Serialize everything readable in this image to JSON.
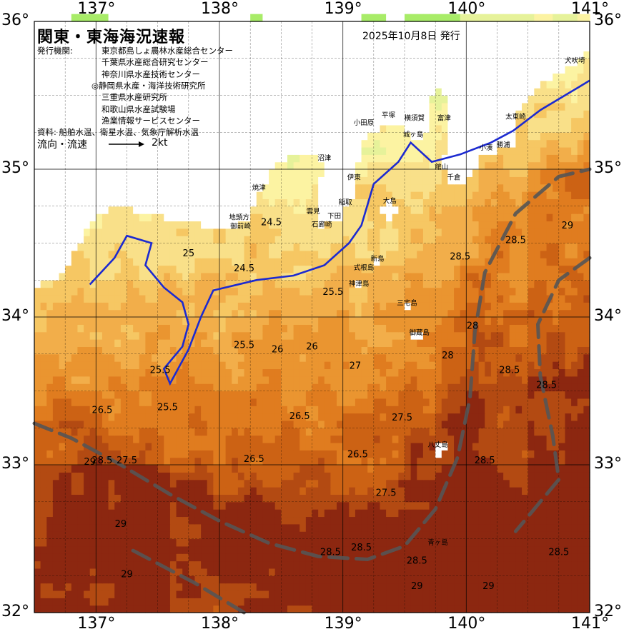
{
  "map": {
    "title": "関東・東海海況速報",
    "issued": "2025年10月8日 発行",
    "issuer_label": "発行機関:",
    "issuers": [
      "東京都島しょ農林水産総合センター",
      "千葉県水産総合研究センター",
      "神奈川県水産技術センター",
      "◎静岡県水産・海洋技術研究所",
      "三重県水産研究所",
      "和歌山県水産試験場",
      "漁業情報サービスセンター"
    ],
    "source": "資料: 船舶水温、衛星水温、気象庁解析水温",
    "flow_label": "流向・流速",
    "flow_scale": "2kt",
    "lon_labels": [
      "137°",
      "138°",
      "139°",
      "140°",
      "141°"
    ],
    "lat_labels": [
      "36°",
      "35°",
      "34°",
      "33°",
      "32°"
    ],
    "places": [
      {
        "name": "焼津",
        "lon": 138.32,
        "lat": 34.86
      },
      {
        "name": "地頭方",
        "lon": 138.16,
        "lat": 34.66
      },
      {
        "name": "御前崎",
        "lon": 138.17,
        "lat": 34.6
      },
      {
        "name": "沼津",
        "lon": 138.85,
        "lat": 35.06
      },
      {
        "name": "伊東",
        "lon": 139.09,
        "lat": 34.93
      },
      {
        "name": "稲取",
        "lon": 139.02,
        "lat": 34.76
      },
      {
        "name": "雲見",
        "lon": 138.76,
        "lat": 34.7
      },
      {
        "name": "下田",
        "lon": 138.93,
        "lat": 34.67
      },
      {
        "name": "石廊崎",
        "lon": 138.83,
        "lat": 34.61
      },
      {
        "name": "小田原",
        "lon": 139.17,
        "lat": 35.3
      },
      {
        "name": "平塚",
        "lon": 139.37,
        "lat": 35.35
      },
      {
        "name": "横須賀",
        "lon": 139.58,
        "lat": 35.33
      },
      {
        "name": "富津",
        "lon": 139.82,
        "lat": 35.33
      },
      {
        "name": "城ヶ島",
        "lon": 139.57,
        "lat": 35.22
      },
      {
        "name": "館山",
        "lon": 139.8,
        "lat": 35.0
      },
      {
        "name": "千倉",
        "lon": 139.9,
        "lat": 34.93
      },
      {
        "name": "大島",
        "lon": 139.38,
        "lat": 34.77
      },
      {
        "name": "新島",
        "lon": 139.28,
        "lat": 34.38
      },
      {
        "name": "式根島",
        "lon": 139.17,
        "lat": 34.32
      },
      {
        "name": "神津島",
        "lon": 139.13,
        "lat": 34.21
      },
      {
        "name": "三宅島",
        "lon": 139.52,
        "lat": 34.08
      },
      {
        "name": "御蔵島",
        "lon": 139.62,
        "lat": 33.88
      },
      {
        "name": "八丈島",
        "lon": 139.77,
        "lat": 33.12
      },
      {
        "name": "青ヶ島",
        "lon": 139.77,
        "lat": 32.46
      },
      {
        "name": "小湊",
        "lon": 140.16,
        "lat": 35.13
      },
      {
        "name": "勝浦",
        "lon": 140.3,
        "lat": 35.15
      },
      {
        "name": "太東崎",
        "lon": 140.4,
        "lat": 35.34
      },
      {
        "name": "犬吠埼",
        "lon": 140.88,
        "lat": 35.72
      }
    ],
    "contour_labels": [
      {
        "text": "24.5",
        "lon": 138.42,
        "lat": 34.62
      },
      {
        "text": "24.5",
        "lon": 138.2,
        "lat": 34.31
      },
      {
        "text": "25",
        "lon": 137.75,
        "lat": 34.41
      },
      {
        "text": "25.5",
        "lon": 138.92,
        "lat": 34.15
      },
      {
        "text": "25.5",
        "lon": 138.2,
        "lat": 33.79
      },
      {
        "text": "25.5",
        "lon": 137.52,
        "lat": 33.62
      },
      {
        "text": "25.5",
        "lon": 137.58,
        "lat": 33.37
      },
      {
        "text": "26",
        "lon": 138.47,
        "lat": 33.76
      },
      {
        "text": "26",
        "lon": 138.75,
        "lat": 33.78
      },
      {
        "text": "26.5",
        "lon": 137.05,
        "lat": 33.35
      },
      {
        "text": "26.5",
        "lon": 138.65,
        "lat": 33.31
      },
      {
        "text": "26.5",
        "lon": 139.12,
        "lat": 33.05
      },
      {
        "text": "26.5",
        "lon": 138.28,
        "lat": 33.02
      },
      {
        "text": "27",
        "lon": 139.1,
        "lat": 33.65
      },
      {
        "text": "27.5",
        "lon": 139.48,
        "lat": 33.3
      },
      {
        "text": "27.5",
        "lon": 137.25,
        "lat": 33.01
      },
      {
        "text": "27.5",
        "lon": 139.35,
        "lat": 32.79
      },
      {
        "text": "28",
        "lon": 139.85,
        "lat": 33.72
      },
      {
        "text": "28",
        "lon": 140.05,
        "lat": 33.92
      },
      {
        "text": "28.5",
        "lon": 139.95,
        "lat": 34.39
      },
      {
        "text": "28.5",
        "lon": 140.4,
        "lat": 34.5
      },
      {
        "text": "28.5",
        "lon": 140.35,
        "lat": 33.62
      },
      {
        "text": "28.5",
        "lon": 140.65,
        "lat": 33.52
      },
      {
        "text": "28.5",
        "lon": 140.15,
        "lat": 33.01
      },
      {
        "text": "28.5",
        "lon": 137.05,
        "lat": 33.01
      },
      {
        "text": "28.5",
        "lon": 138.9,
        "lat": 32.39
      },
      {
        "text": "28.5",
        "lon": 139.15,
        "lat": 32.42
      },
      {
        "text": "28.5",
        "lon": 139.6,
        "lat": 32.33
      },
      {
        "text": "28.5",
        "lon": 140.75,
        "lat": 32.39
      },
      {
        "text": "29",
        "lon": 136.95,
        "lat": 33.0
      },
      {
        "text": "29",
        "lon": 137.2,
        "lat": 32.58
      },
      {
        "text": "29",
        "lon": 137.25,
        "lat": 32.24
      },
      {
        "text": "29",
        "lon": 139.6,
        "lat": 32.16
      },
      {
        "text": "29",
        "lon": 140.18,
        "lat": 32.16
      },
      {
        "text": "29",
        "lon": 140.82,
        "lat": 34.6
      }
    ]
  },
  "chart_data": {
    "type": "map",
    "projection": "equirectangular",
    "lon_range": [
      136.5,
      141.0
    ],
    "lat_range": [
      32.0,
      36.0
    ],
    "grid_step_deg": 0.25,
    "variable": "sea surface temperature",
    "temperature_colors": [
      {
        "min": 0,
        "max": 24.0,
        "color": "#ffffff"
      },
      {
        "min": 24.0,
        "max": 24.5,
        "color": "#a8ec68"
      },
      {
        "min": 24.5,
        "max": 25.0,
        "color": "#e6f29a"
      },
      {
        "min": 25.0,
        "max": 25.5,
        "color": "#fcf3a2"
      },
      {
        "min": 25.5,
        "max": 26.0,
        "color": "#f9e089"
      },
      {
        "min": 26.0,
        "max": 26.5,
        "color": "#f6c763"
      },
      {
        "min": 26.5,
        "max": 27.0,
        "color": "#f2ae4a"
      },
      {
        "min": 27.0,
        "max": 27.5,
        "color": "#ea9530"
      },
      {
        "min": 27.5,
        "max": 28.0,
        "color": "#e07c1f"
      },
      {
        "min": 28.0,
        "max": 28.5,
        "color": "#cc6214"
      },
      {
        "min": 28.5,
        "max": 29.0,
        "color": "#b34a12"
      },
      {
        "min": 29.0,
        "max": 99,
        "color": "#8c2710"
      }
    ],
    "land_color": "#ffffff",
    "contour_color": "#2424a0",
    "highlight_isotherm": 25.0,
    "highlight_color": "#1c2ad0",
    "kuroshio_path_color": "#555555",
    "kuroshio_path": [
      [
        136.5,
        33.28
      ],
      [
        136.8,
        33.18
      ],
      [
        137.2,
        33.0
      ],
      [
        137.6,
        32.8
      ],
      [
        138.0,
        32.62
      ],
      [
        138.4,
        32.47
      ],
      [
        138.8,
        32.38
      ],
      [
        139.2,
        32.36
      ],
      [
        139.5,
        32.45
      ],
      [
        139.75,
        32.7
      ],
      [
        139.93,
        33.05
      ],
      [
        140.03,
        33.45
      ],
      [
        140.07,
        33.9
      ],
      [
        140.15,
        34.3
      ],
      [
        140.4,
        34.7
      ],
      [
        140.75,
        34.95
      ],
      [
        141.0,
        35.0
      ]
    ],
    "kuroshio_path_2": [
      [
        141.0,
        34.4
      ],
      [
        140.75,
        34.25
      ],
      [
        140.58,
        33.95
      ],
      [
        140.6,
        33.6
      ],
      [
        140.7,
        33.2
      ],
      [
        140.75,
        32.9
      ],
      [
        140.6,
        32.75
      ],
      [
        140.4,
        32.55
      ]
    ],
    "kuroshio_path_3": [
      [
        137.3,
        32.42
      ],
      [
        137.8,
        32.2
      ],
      [
        138.2,
        32.0
      ]
    ]
  }
}
